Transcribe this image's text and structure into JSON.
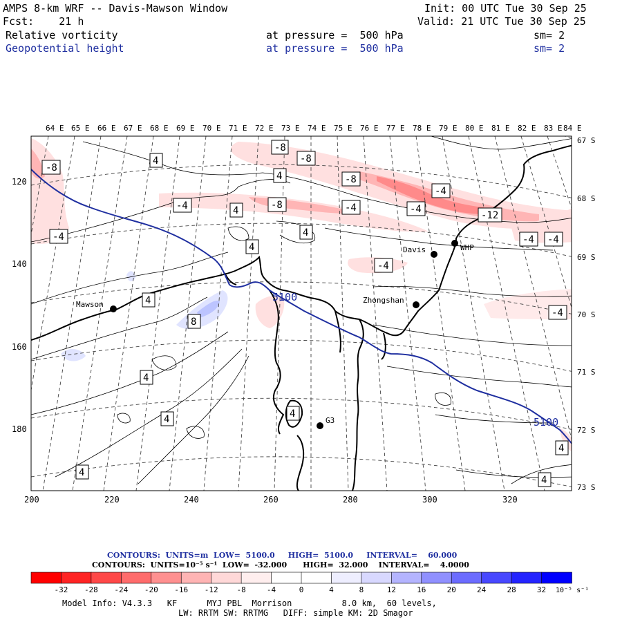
{
  "header": {
    "title": "AMPS 8-km WRF -- Davis-Mawson Window",
    "init": "Init: 00 UTC Tue 30 Sep 25",
    "fcst": "Fcst:    21 h",
    "valid": "Valid: 21 UTC Tue 30 Sep 25",
    "field1": {
      "name": "Relative vorticity",
      "pressure": "at pressure =  500 hPa",
      "sm": "sm= 2"
    },
    "field2": {
      "name": "Geopotential height",
      "pressure": "at pressure =  500 hPa",
      "sm": "sm= 2"
    }
  },
  "map": {
    "lon_labels": [
      "64 E",
      "65 E",
      "66 E",
      "67 E",
      "68 E",
      "69 E",
      "70 E",
      "71 E",
      "72 E",
      "73 E",
      "74 E",
      "75 E",
      "76 E",
      "77 E",
      "78 E",
      "79 E",
      "80 E",
      "81 E",
      "82 E",
      "83 E",
      "84 E"
    ],
    "lat_labels": [
      "67 S",
      "68 S",
      "69 S",
      "70 S",
      "71 S",
      "72 S",
      "73 S"
    ],
    "x_ticks": [
      "200",
      "220",
      "240",
      "260",
      "280",
      "300",
      "320"
    ],
    "y_ticks": [
      "120",
      "140",
      "160",
      "180"
    ],
    "stations": [
      {
        "name": "Mawson"
      },
      {
        "name": "Davis"
      },
      {
        "name": "WHP"
      },
      {
        "name": "Zhongshan"
      },
      {
        "name": "G3"
      }
    ],
    "contour_labels": {
      "height_5100": "5100",
      "neg8": "-8",
      "neg4": "-4",
      "neg12": "-12",
      "pos4": "4",
      "pos8": "8"
    },
    "colors": {
      "geopotential": "#1f2fa0",
      "coast": "#000000",
      "neg_light": "#ffe0e0",
      "neg_mid": "#ffb5b5",
      "neg_dark": "#ff8080",
      "pos_light": "#e0e4ff",
      "pos_mid": "#bcc4ff"
    }
  },
  "contours_info": {
    "line1": "CONTOURS:  UNITS=m  LOW=  5100.0     HIGH=  5100.0     INTERVAL=    60.000",
    "line2": "CONTOURS:  UNITS=10⁻⁵ s⁻¹  LOW=  -32.000      HIGH=  32.000    INTERVAL=    4.0000"
  },
  "colorbar": {
    "colors": [
      "#ff0000",
      "#ff2424",
      "#ff4848",
      "#ff6c6c",
      "#ff9090",
      "#ffb4b4",
      "#ffd8d8",
      "#ffeeee",
      "#ffffff",
      "#ffffff",
      "#eeeeff",
      "#d8d8ff",
      "#b4b4ff",
      "#9090ff",
      "#6c6cff",
      "#4848ff",
      "#2424ff",
      "#0000ff"
    ],
    "labels": [
      "-32",
      "-28",
      "-24",
      "-20",
      "-16",
      "-12",
      "-8",
      "-4",
      "0",
      "4",
      "8",
      "12",
      "16",
      "20",
      "24",
      "28",
      "32"
    ],
    "unit": "10⁻⁵ s⁻¹"
  },
  "footer": {
    "line1": "Model Info: V4.3.3   KF      MYJ PBL  Morrison          8.0 km,  60 levels,",
    "line2": "LW: RRTM SW: RRTMG   DIFF: simple KM: 2D Smagor"
  }
}
